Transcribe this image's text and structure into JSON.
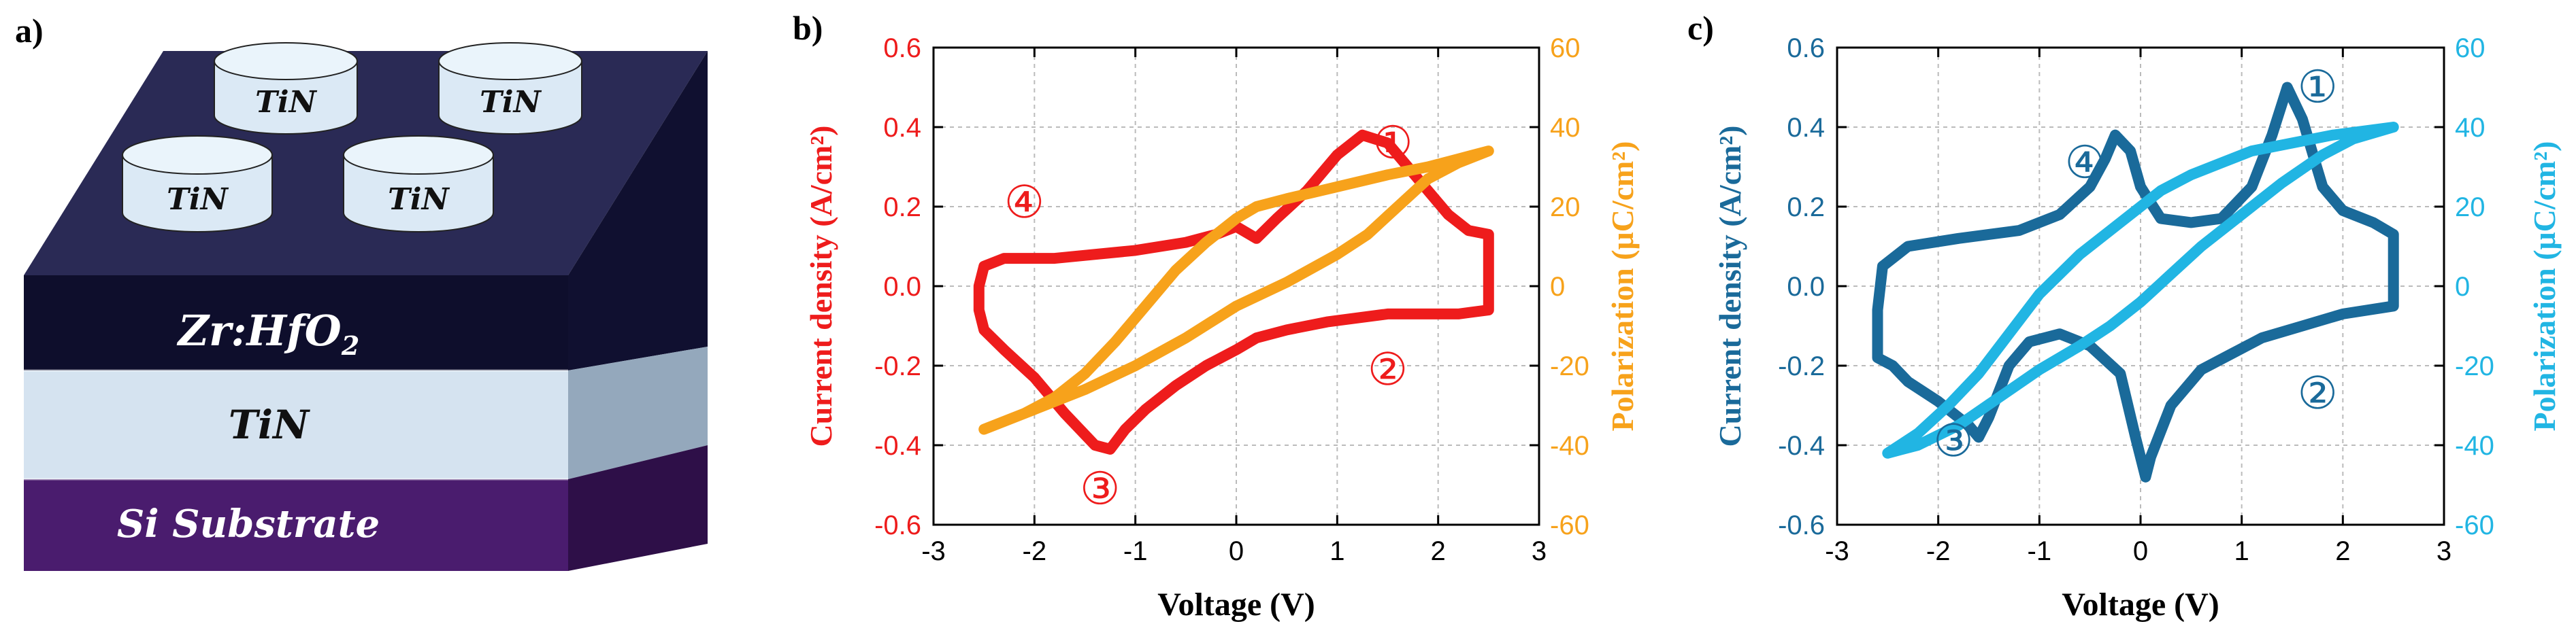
{
  "panels": {
    "a": {
      "label": "a)",
      "electrode_label": "TiN",
      "layers": [
        {
          "name": "ferroelectric",
          "label_main": "Zr:HfO",
          "label_sub": "2",
          "color": "#0e0e2c"
        },
        {
          "name": "bottom_electrode",
          "label": "TiN",
          "color": "#d5e3f0"
        },
        {
          "name": "substrate",
          "label": "Si Substrate",
          "color": "#4a1c6e"
        }
      ],
      "top_face_color": "#2a2a55",
      "electrode_count": 4
    },
    "b": {
      "label": "b)"
    },
    "c": {
      "label": "c)"
    }
  },
  "chart_data": [
    {
      "type": "line",
      "panel": "b",
      "xlabel": "Voltage (V)",
      "xlim": [
        -3,
        3
      ],
      "xticks": [
        -3,
        -2,
        -1,
        0,
        1,
        2,
        3
      ],
      "ylabel": "Current density (A/cm²)",
      "ylim": [
        -0.6,
        0.6
      ],
      "yticks": [
        "-0.6",
        "-0.4",
        "-0.2",
        "0.0",
        "0.2",
        "0.4",
        "0.6"
      ],
      "y2label": "Polarization (μC/cm²)",
      "y2lim": [
        -60,
        60
      ],
      "y2ticks": [
        "-60",
        "-40",
        "-20",
        "0",
        "20",
        "40",
        "60"
      ],
      "grid": true,
      "colors": {
        "current": "#ee1c1c",
        "polarization": "#f7a21b",
        "current_axis": "#ee1c1c",
        "polarization_axis": "#f7a21b"
      },
      "annotations": [
        {
          "text": "①",
          "x": 1.55,
          "y": 0.36
        },
        {
          "text": "②",
          "x": 1.5,
          "y": -0.21
        },
        {
          "text": "③",
          "x": -1.35,
          "y": -0.51
        },
        {
          "text": "④",
          "x": -2.1,
          "y": 0.21
        }
      ],
      "series": [
        {
          "name": "Current density",
          "axis": "left",
          "points": [
            [
              0.0,
              0.15
            ],
            [
              0.2,
              0.12
            ],
            [
              0.4,
              0.17
            ],
            [
              0.7,
              0.24
            ],
            [
              1.0,
              0.33
            ],
            [
              1.25,
              0.38
            ],
            [
              1.5,
              0.36
            ],
            [
              1.8,
              0.27
            ],
            [
              2.1,
              0.18
            ],
            [
              2.3,
              0.14
            ],
            [
              2.5,
              0.13
            ],
            [
              2.5,
              -0.02
            ],
            [
              2.5,
              -0.06
            ],
            [
              2.2,
              -0.07
            ],
            [
              1.5,
              -0.07
            ],
            [
              0.9,
              -0.09
            ],
            [
              0.5,
              -0.11
            ],
            [
              0.2,
              -0.13
            ],
            [
              0.0,
              -0.16
            ],
            [
              -0.3,
              -0.2
            ],
            [
              -0.6,
              -0.25
            ],
            [
              -0.9,
              -0.31
            ],
            [
              -1.1,
              -0.36
            ],
            [
              -1.25,
              -0.41
            ],
            [
              -1.4,
              -0.4
            ],
            [
              -1.7,
              -0.32
            ],
            [
              -2.0,
              -0.23
            ],
            [
              -2.3,
              -0.16
            ],
            [
              -2.5,
              -0.11
            ],
            [
              -2.55,
              -0.06
            ],
            [
              -2.55,
              0.0
            ],
            [
              -2.5,
              0.05
            ],
            [
              -2.3,
              0.07
            ],
            [
              -1.8,
              0.07
            ],
            [
              -1.0,
              0.09
            ],
            [
              -0.5,
              0.11
            ],
            [
              -0.2,
              0.13
            ],
            [
              0.0,
              0.15
            ]
          ]
        },
        {
          "name": "Polarization",
          "axis": "right",
          "points": [
            [
              -2.5,
              -36
            ],
            [
              -2.0,
              -31
            ],
            [
              -1.5,
              -26
            ],
            [
              -1.0,
              -20
            ],
            [
              -0.5,
              -13
            ],
            [
              0.0,
              -5
            ],
            [
              0.5,
              1
            ],
            [
              1.0,
              8
            ],
            [
              1.3,
              13
            ],
            [
              1.6,
              20
            ],
            [
              1.9,
              27
            ],
            [
              2.2,
              31
            ],
            [
              2.5,
              34
            ],
            [
              2.2,
              32
            ],
            [
              1.9,
              30
            ],
            [
              1.5,
              28
            ],
            [
              1.0,
              25
            ],
            [
              0.5,
              22
            ],
            [
              0.2,
              20
            ],
            [
              0.0,
              17
            ],
            [
              -0.3,
              11
            ],
            [
              -0.6,
              4
            ],
            [
              -0.9,
              -5
            ],
            [
              -1.2,
              -14
            ],
            [
              -1.5,
              -22
            ],
            [
              -1.8,
              -28
            ],
            [
              -2.1,
              -32
            ],
            [
              -2.5,
              -36
            ]
          ]
        }
      ]
    },
    {
      "type": "line",
      "panel": "c",
      "xlabel": "Voltage (V)",
      "xlim": [
        -3,
        3
      ],
      "xticks": [
        -3,
        -2,
        -1,
        0,
        1,
        2,
        3
      ],
      "ylabel": "Current density (A/cm²)",
      "ylim": [
        -0.6,
        0.6
      ],
      "yticks": [
        "-0.6",
        "-0.4",
        "-0.2",
        "0.0",
        "0.2",
        "0.4",
        "0.6"
      ],
      "y2label": "Polarization (μC/cm²)",
      "y2lim": [
        -60,
        60
      ],
      "y2ticks": [
        "-60",
        "-40",
        "-20",
        "0",
        "20",
        "40",
        "60"
      ],
      "grid": true,
      "colors": {
        "current": "#1a6a9a",
        "polarization": "#21b5e3",
        "current_axis": "#1a6a9a",
        "polarization_axis": "#21b5e3"
      },
      "annotations": [
        {
          "text": "①",
          "x": 1.75,
          "y": 0.5
        },
        {
          "text": "②",
          "x": 1.75,
          "y": -0.27
        },
        {
          "text": "③",
          "x": -1.85,
          "y": -0.39
        },
        {
          "text": "④",
          "x": -0.55,
          "y": 0.31
        }
      ],
      "series": [
        {
          "name": "Current density",
          "axis": "left",
          "points": [
            [
              2.5,
              0.13
            ],
            [
              2.5,
              0.0
            ],
            [
              2.5,
              -0.05
            ],
            [
              2.0,
              -0.07
            ],
            [
              1.6,
              -0.1
            ],
            [
              1.2,
              -0.13
            ],
            [
              0.9,
              -0.17
            ],
            [
              0.6,
              -0.21
            ],
            [
              0.3,
              -0.3
            ],
            [
              0.1,
              -0.43
            ],
            [
              0.05,
              -0.48
            ],
            [
              -0.05,
              -0.38
            ],
            [
              -0.2,
              -0.22
            ],
            [
              -0.5,
              -0.15
            ],
            [
              -0.8,
              -0.12
            ],
            [
              -1.1,
              -0.14
            ],
            [
              -1.3,
              -0.2
            ],
            [
              -1.5,
              -0.33
            ],
            [
              -1.6,
              -0.38
            ],
            [
              -1.7,
              -0.35
            ],
            [
              -2.0,
              -0.29
            ],
            [
              -2.3,
              -0.24
            ],
            [
              -2.45,
              -0.2
            ],
            [
              -2.6,
              -0.18
            ],
            [
              -2.6,
              -0.06
            ],
            [
              -2.55,
              0.05
            ],
            [
              -2.3,
              0.1
            ],
            [
              -1.8,
              0.12
            ],
            [
              -1.2,
              0.14
            ],
            [
              -0.8,
              0.18
            ],
            [
              -0.5,
              0.25
            ],
            [
              -0.35,
              0.32
            ],
            [
              -0.25,
              0.38
            ],
            [
              -0.1,
              0.34
            ],
            [
              0.0,
              0.25
            ],
            [
              0.2,
              0.17
            ],
            [
              0.5,
              0.16
            ],
            [
              0.8,
              0.17
            ],
            [
              1.1,
              0.25
            ],
            [
              1.3,
              0.38
            ],
            [
              1.45,
              0.5
            ],
            [
              1.6,
              0.42
            ],
            [
              1.8,
              0.25
            ],
            [
              2.0,
              0.19
            ],
            [
              2.3,
              0.16
            ],
            [
              2.5,
              0.13
            ]
          ]
        },
        {
          "name": "Polarization",
          "axis": "right",
          "points": [
            [
              -2.5,
              -42
            ],
            [
              -2.2,
              -40
            ],
            [
              -1.8,
              -35
            ],
            [
              -1.4,
              -28
            ],
            [
              -1.0,
              -21
            ],
            [
              -0.6,
              -15
            ],
            [
              -0.3,
              -10
            ],
            [
              0.0,
              -4
            ],
            [
              0.3,
              3
            ],
            [
              0.6,
              10
            ],
            [
              1.0,
              18
            ],
            [
              1.4,
              26
            ],
            [
              1.8,
              33
            ],
            [
              2.1,
              37
            ],
            [
              2.5,
              40
            ],
            [
              2.2,
              39
            ],
            [
              1.9,
              38
            ],
            [
              1.5,
              36
            ],
            [
              1.1,
              34
            ],
            [
              0.8,
              31
            ],
            [
              0.5,
              28
            ],
            [
              0.2,
              24
            ],
            [
              0.0,
              20
            ],
            [
              -0.3,
              14
            ],
            [
              -0.6,
              8
            ],
            [
              -1.0,
              -2
            ],
            [
              -1.3,
              -12
            ],
            [
              -1.6,
              -22
            ],
            [
              -1.9,
              -30
            ],
            [
              -2.2,
              -37
            ],
            [
              -2.5,
              -42
            ]
          ]
        }
      ]
    }
  ]
}
